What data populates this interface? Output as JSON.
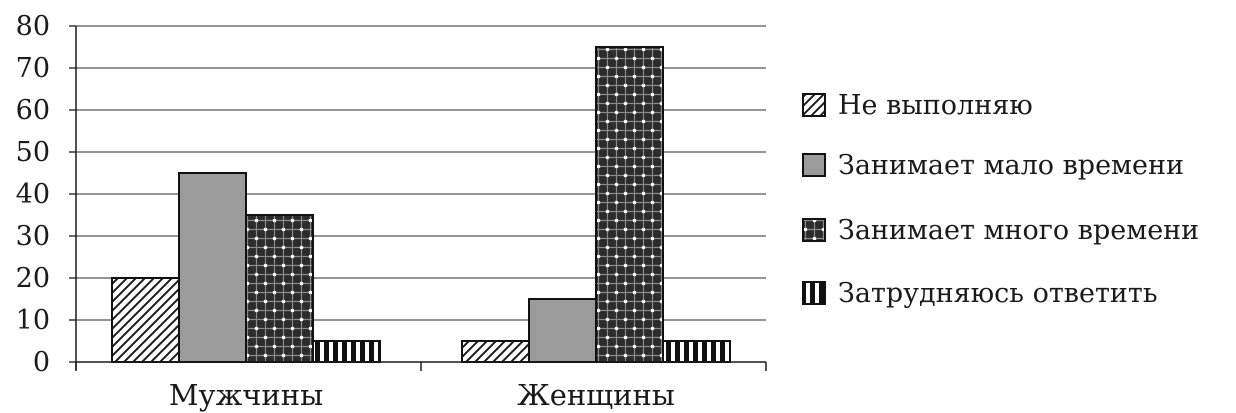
{
  "chart_data": {
    "type": "bar",
    "categories": [
      "Мужчины",
      "Женщины"
    ],
    "series": [
      {
        "name": "Не выполняю",
        "values": [
          20,
          5
        ]
      },
      {
        "name": "Занимает мало времени",
        "values": [
          45,
          15
        ]
      },
      {
        "name": "Занимает много времени",
        "values": [
          35,
          75
        ]
      },
      {
        "name": "Затрудняюсь ответить",
        "values": [
          5,
          5
        ]
      }
    ],
    "ylim": [
      0,
      80
    ],
    "yticks": [
      0,
      10,
      20,
      30,
      40,
      50,
      60,
      70,
      80
    ],
    "grid": true,
    "legend_position": "right",
    "series_patterns": [
      "diagonal-hatch",
      "solid-gray",
      "dotted-crosshatch",
      "vertical-stripes"
    ],
    "colors": {
      "gray_fill": "#9b9b9b",
      "dark": "#1a1a1a",
      "grid": "#555555"
    }
  }
}
